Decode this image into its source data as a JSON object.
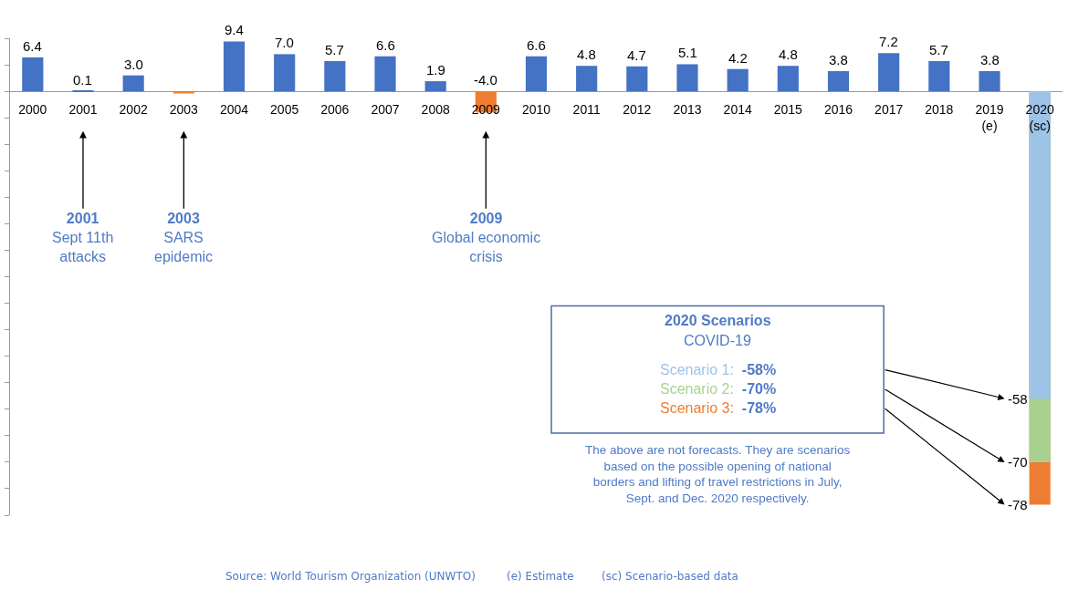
{
  "chart_data": {
    "type": "bar",
    "categories": [
      "2000",
      "2001",
      "2002",
      "2003",
      "2004",
      "2005",
      "2006",
      "2007",
      "2008",
      "2009",
      "2010",
      "2011",
      "2012",
      "2013",
      "2014",
      "2015",
      "2016",
      "2017",
      "2018",
      "2019\n(e)",
      "2020\n(sc)"
    ],
    "series": [
      {
        "colors": [
          "#4472c4",
          "#4472c4",
          "#4472c4",
          "#ed7d31",
          "#4472c4",
          "#4472c4",
          "#4472c4",
          "#4472c4",
          "#4472c4",
          "#ed7d31",
          "#4472c4",
          "#4472c4",
          "#4472c4",
          "#4472c4",
          "#4472c4",
          "#4472c4",
          "#4472c4",
          "#4472c4",
          "#4472c4",
          "#4472c4",
          "#9dc3e6"
        ],
        "values": [
          6.4,
          0.1,
          3.0,
          -0.4,
          9.4,
          7.0,
          5.7,
          6.6,
          1.9,
          -4.0,
          6.6,
          4.8,
          4.7,
          5.1,
          4.2,
          4.8,
          3.8,
          7.2,
          5.7,
          3.8,
          -58
        ],
        "value_labels": [
          "6.4",
          "0.1",
          "3.0",
          null,
          "9.4",
          "7.0",
          "5.7",
          "6.6",
          "1.9",
          "-4.0",
          "6.6",
          "4.8",
          "4.7",
          "5.1",
          "4.2",
          "4.8",
          "3.8",
          "7.2",
          "5.7",
          "3.8",
          "-58"
        ]
      },
      {
        "color": "#a9d18e",
        "values": [
          null,
          null,
          null,
          null,
          null,
          null,
          null,
          null,
          null,
          null,
          null,
          null,
          null,
          null,
          null,
          null,
          null,
          null,
          null,
          null,
          -70
        ],
        "value_labels": [
          null,
          null,
          null,
          null,
          null,
          null,
          null,
          null,
          null,
          null,
          null,
          null,
          null,
          null,
          null,
          null,
          null,
          null,
          null,
          null,
          "-70"
        ]
      },
      {
        "color": "#ed7d31",
        "values": [
          null,
          null,
          null,
          null,
          null,
          null,
          null,
          null,
          null,
          null,
          null,
          null,
          null,
          null,
          null,
          null,
          null,
          null,
          null,
          null,
          -78
        ],
        "value_labels": [
          null,
          null,
          null,
          null,
          null,
          null,
          null,
          null,
          null,
          null,
          null,
          null,
          null,
          null,
          null,
          null,
          null,
          null,
          null,
          null,
          "-78"
        ]
      }
    ],
    "ylim": [
      -80,
      10
    ],
    "yticks": [
      {
        "value": -80,
        "label": null
      },
      {
        "value": -75,
        "label": null
      },
      {
        "value": -70,
        "label": null
      },
      {
        "value": -65,
        "label": null
      },
      {
        "value": -60,
        "label": null
      },
      {
        "value": -55,
        "label": null
      },
      {
        "value": -50,
        "label": null
      },
      {
        "value": -45,
        "label": null
      },
      {
        "value": -40,
        "label": null
      },
      {
        "value": -35,
        "label": null
      },
      {
        "value": -30,
        "label": null
      },
      {
        "value": -25,
        "label": null
      },
      {
        "value": -20,
        "label": null
      },
      {
        "value": -15,
        "label": null
      },
      {
        "value": -10,
        "label": null
      },
      {
        "value": -5,
        "label": null
      },
      {
        "value": 0,
        "label": null
      },
      {
        "value": 5,
        "label": null
      },
      {
        "value": 10,
        "label": null
      }
    ],
    "tick_labels": "x",
    "annotations": [
      "2001\nSept 11th\nattacks",
      "2003\nSARS\nepidemic",
      "2009\nGlobal economic\ncrisis",
      "Scenario 1:  -58%",
      "Scenario 2:  -70%",
      "Scenario 3:  -78%",
      "2020 Scenarios",
      "COVID-19",
      "The above are not forecasts. They are scenarios\nbased on the possible opening of national\nborders and lifting of travel restrictions in July,\nSept. and Dec. 2020 respectively.",
      "Source: World Tourism Organization (UNWTO)",
      "(e) Estimate",
      "(sc) Scenario-based data"
    ]
  }
}
